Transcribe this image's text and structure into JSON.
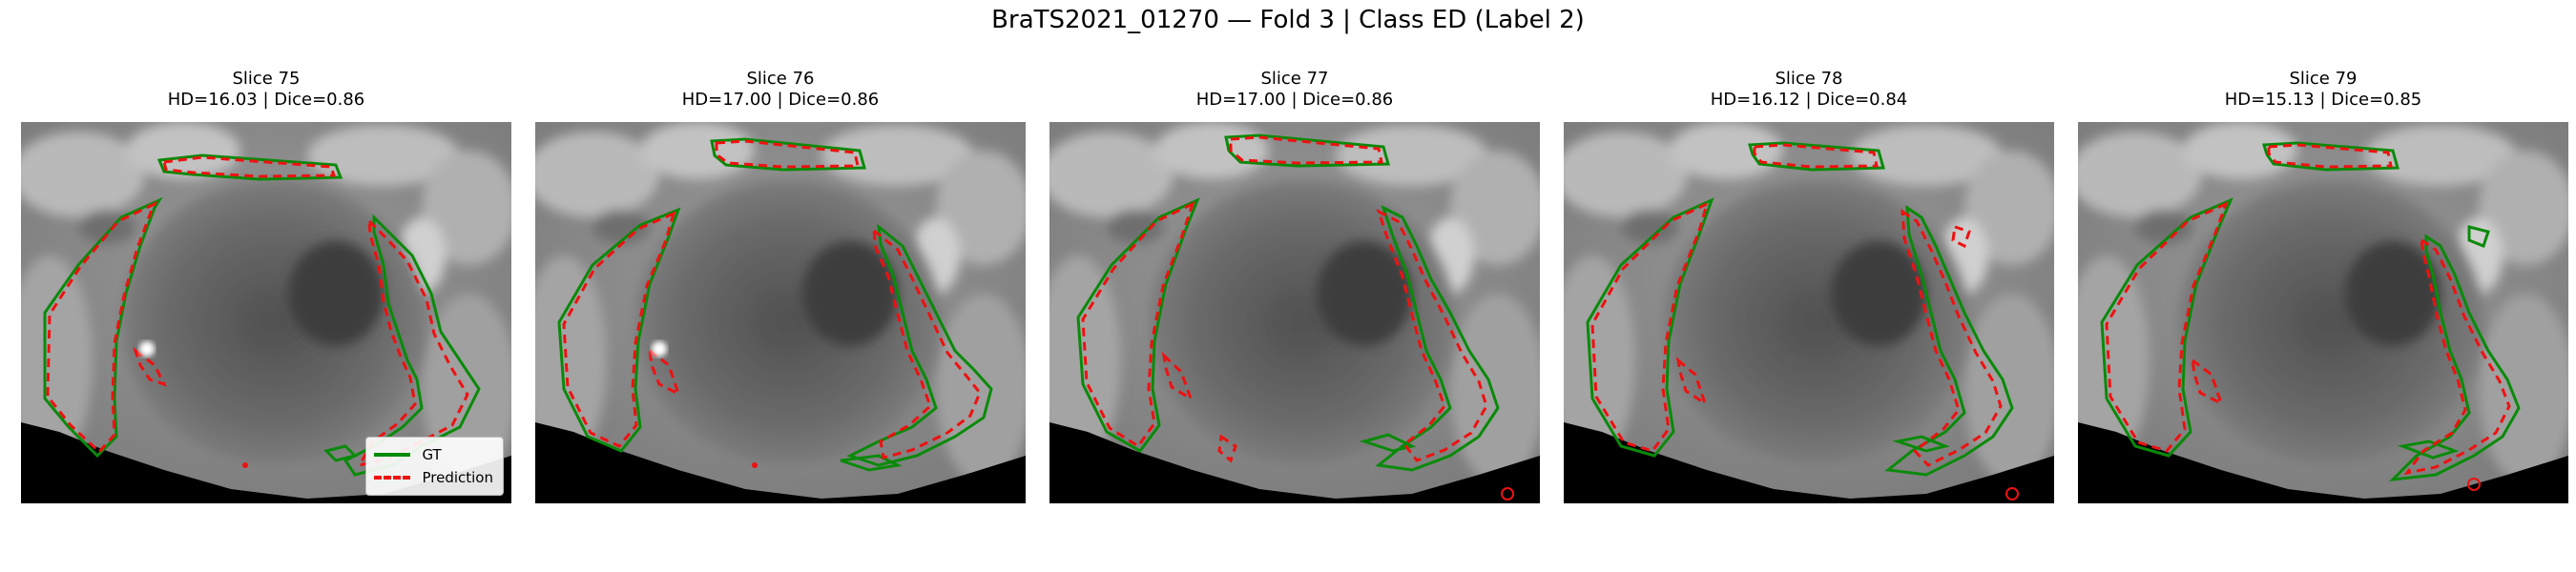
{
  "figure": {
    "title": "BraTS2021_01270 — Fold 3 | Class ED (Label 2)",
    "legend": {
      "gt_label": "GT",
      "prediction_label": "Prediction"
    },
    "colors": {
      "gt": "#0a8a0a",
      "prediction": "#ee1111"
    },
    "panels": [
      {
        "slice": "Slice 75",
        "metrics": "HD=16.03 | Dice=0.86"
      },
      {
        "slice": "Slice 76",
        "metrics": "HD=17.00 | Dice=0.86"
      },
      {
        "slice": "Slice 77",
        "metrics": "HD=17.00 | Dice=0.86"
      },
      {
        "slice": "Slice 78",
        "metrics": "HD=16.12 | Dice=0.84"
      },
      {
        "slice": "Slice 79",
        "metrics": "HD=15.13 | Dice=0.85"
      }
    ]
  }
}
